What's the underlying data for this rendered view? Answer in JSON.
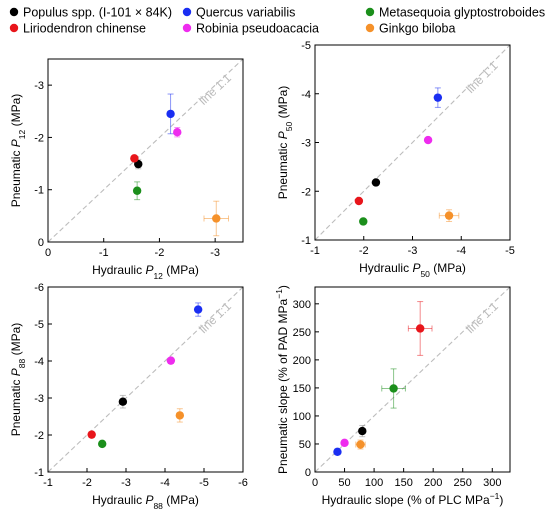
{
  "legend": [
    {
      "name": "Populus spp. (I-101 × 84K)",
      "color": "#000000"
    },
    {
      "name": "Liriodendron chinense",
      "color": "#e8151b"
    },
    {
      "name": "Quercus variabilis",
      "color": "#1a2ef2"
    },
    {
      "name": "Robinia pseudoacacia",
      "color": "#ee2cee"
    },
    {
      "name": "Metasequoia glyptostroboides",
      "color": "#1b8f1b"
    },
    {
      "name": "Ginkgo biloba",
      "color": "#f5912a"
    }
  ],
  "chart_data": [
    {
      "type": "scatter",
      "xlabel": "Hydraulic P12 (MPa)",
      "ylabel": "Pneumatic P12 (MPa)",
      "xlim": [
        0,
        -3.5
      ],
      "ylim": [
        0,
        -3.5
      ],
      "xticks": [
        0,
        -1,
        -2,
        -3
      ],
      "yticks": [
        0,
        -1,
        -2,
        -3
      ],
      "annotation": "line 1:1",
      "points": [
        {
          "series": 0,
          "x": -1.62,
          "y": -1.49,
          "xerr": 0,
          "yerr": 0.09
        },
        {
          "series": 1,
          "x": -1.55,
          "y": -1.6,
          "xerr": 0,
          "yerr": 0
        },
        {
          "series": 2,
          "x": -2.2,
          "y": -2.45,
          "xerr": 0,
          "yerr": 0.38
        },
        {
          "series": 3,
          "x": -2.32,
          "y": -2.1,
          "xerr": 0,
          "yerr": 0.09
        },
        {
          "series": 4,
          "x": -1.6,
          "y": -0.98,
          "xerr": 0,
          "yerr": 0.17
        },
        {
          "series": 5,
          "x": -3.02,
          "y": -0.45,
          "xerr": 0.22,
          "yerr": 0.33
        }
      ]
    },
    {
      "type": "scatter",
      "xlabel": "Hydraulic P50 (MPa)",
      "ylabel": "Pneumatic P50 (MPa)",
      "xlim": [
        -1,
        -5
      ],
      "ylim": [
        -1,
        -5
      ],
      "xticks": [
        -1,
        -2,
        -3,
        -4,
        -5
      ],
      "yticks": [
        -1,
        -2,
        -3,
        -4,
        -5
      ],
      "annotation": "line 1:1",
      "points": [
        {
          "series": 0,
          "x": -2.25,
          "y": -2.18,
          "xerr": 0,
          "yerr": 0
        },
        {
          "series": 1,
          "x": -1.9,
          "y": -1.8,
          "xerr": 0,
          "yerr": 0
        },
        {
          "series": 2,
          "x": -3.52,
          "y": -3.92,
          "xerr": 0,
          "yerr": 0.2
        },
        {
          "series": 3,
          "x": -3.32,
          "y": -3.05,
          "xerr": 0,
          "yerr": 0
        },
        {
          "series": 4,
          "x": -1.99,
          "y": -1.38,
          "xerr": 0,
          "yerr": 0
        },
        {
          "series": 5,
          "x": -3.75,
          "y": -1.5,
          "xerr": 0.2,
          "yerr": 0.12
        }
      ]
    },
    {
      "type": "scatter",
      "xlabel": "Hydraulic P88 (MPa)",
      "ylabel": "Pneumatic P88 (MPa)",
      "xlim": [
        -1,
        -6
      ],
      "ylim": [
        -1,
        -6
      ],
      "xticks": [
        -1,
        -2,
        -3,
        -4,
        -5,
        -6
      ],
      "yticks": [
        -1,
        -2,
        -3,
        -4,
        -5,
        -6
      ],
      "annotation": "line 1:1",
      "points": [
        {
          "series": 0,
          "x": -2.92,
          "y": -2.9,
          "xerr": 0,
          "yerr": 0.17
        },
        {
          "series": 1,
          "x": -2.12,
          "y": -2.01,
          "xerr": 0,
          "yerr": 0
        },
        {
          "series": 2,
          "x": -4.85,
          "y": -5.39,
          "xerr": 0,
          "yerr": 0.18
        },
        {
          "series": 3,
          "x": -4.15,
          "y": -4.01,
          "xerr": 0,
          "yerr": 0
        },
        {
          "series": 4,
          "x": -2.39,
          "y": -1.76,
          "xerr": 0,
          "yerr": 0
        },
        {
          "series": 5,
          "x": -4.38,
          "y": -2.53,
          "xerr": 0,
          "yerr": 0.18
        }
      ]
    },
    {
      "type": "scatter",
      "xlabel": "Hydraulic slope (% of PLC MPa⁻¹)",
      "ylabel": "Pneumatic slope (% of PAD MPa⁻¹)",
      "xlim": [
        0,
        330
      ],
      "ylim": [
        0,
        330
      ],
      "xticks": [
        0,
        50,
        100,
        150,
        200,
        250,
        300
      ],
      "yticks": [
        0,
        50,
        100,
        150,
        200,
        250,
        300
      ],
      "annotation": "line 1:1",
      "points": [
        {
          "series": 0,
          "x": 80,
          "y": 73,
          "xerr": 5,
          "yerr": 10
        },
        {
          "series": 1,
          "x": 178,
          "y": 256,
          "xerr": 20,
          "yerr": 48
        },
        {
          "series": 2,
          "x": 38,
          "y": 36,
          "xerr": 4,
          "yerr": 5
        },
        {
          "series": 3,
          "x": 50,
          "y": 52,
          "xerr": 4,
          "yerr": 4
        },
        {
          "series": 4,
          "x": 133,
          "y": 149,
          "xerr": 20,
          "yerr": 35
        },
        {
          "series": 5,
          "x": 77,
          "y": 49,
          "xerr": 8,
          "yerr": 8
        }
      ]
    }
  ]
}
